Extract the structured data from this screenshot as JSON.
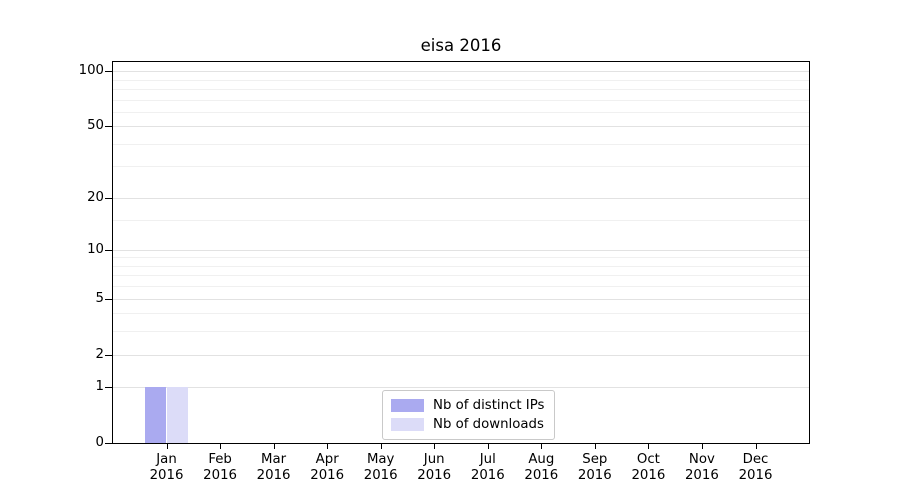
{
  "chart_data": {
    "type": "bar",
    "title": "eisa 2016",
    "x_categories": [
      {
        "month": "Jan",
        "year": "2016"
      },
      {
        "month": "Feb",
        "year": "2016"
      },
      {
        "month": "Mar",
        "year": "2016"
      },
      {
        "month": "Apr",
        "year": "2016"
      },
      {
        "month": "May",
        "year": "2016"
      },
      {
        "month": "Jun",
        "year": "2016"
      },
      {
        "month": "Jul",
        "year": "2016"
      },
      {
        "month": "Aug",
        "year": "2016"
      },
      {
        "month": "Sep",
        "year": "2016"
      },
      {
        "month": "Oct",
        "year": "2016"
      },
      {
        "month": "Nov",
        "year": "2016"
      },
      {
        "month": "Dec",
        "year": "2016"
      }
    ],
    "series": [
      {
        "name": "Nb of distinct IPs",
        "color": "#aaaaf0",
        "values": [
          1,
          0,
          0,
          0,
          0,
          0,
          0,
          0,
          0,
          0,
          0,
          0
        ]
      },
      {
        "name": "Nb of downloads",
        "color": "#dcdcf8",
        "values": [
          1,
          0,
          0,
          0,
          0,
          0,
          0,
          0,
          0,
          0,
          0,
          0
        ]
      }
    ],
    "y_scale": "log10(1+x)",
    "y_ticks": [
      0,
      1,
      2,
      5,
      10,
      20,
      50,
      100
    ],
    "y_minor_ticks": [
      3,
      4,
      6,
      7,
      8,
      9,
      15,
      30,
      40,
      60,
      70,
      80,
      90
    ],
    "ylim": [
      0,
      112
    ],
    "grid": "horizontal-only",
    "legend_position": "lower center",
    "xlabel": "",
    "ylabel": ""
  }
}
